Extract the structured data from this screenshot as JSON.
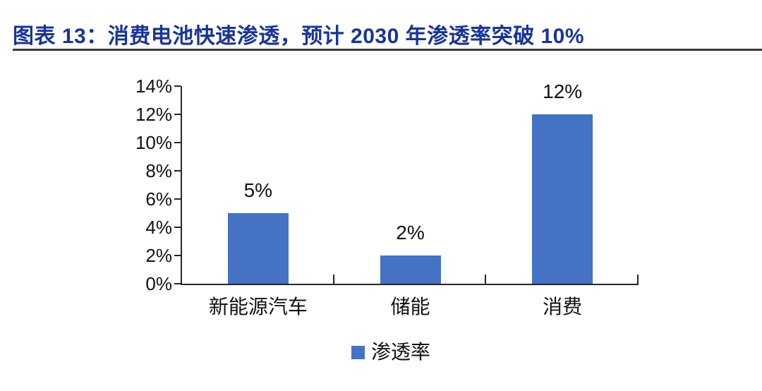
{
  "header": {
    "chart_label": "图表 13：消费电池快速渗透，预计 2030 年渗透率突破 10%"
  },
  "colors": {
    "title_text": "#17349C",
    "separator": "#383838",
    "axis": "#262626",
    "bar": "#4472C4",
    "label_text": "#111111"
  },
  "chart_data": {
    "type": "bar",
    "title": "图表 13：消费电池快速渗透，预计 2030 年渗透率突破 10%",
    "categories": [
      "新能源汽车",
      "储能",
      "消费"
    ],
    "values": [
      5,
      2,
      12
    ],
    "data_labels": [
      "5%",
      "2%",
      "12%"
    ],
    "unit": "%",
    "ylim": [
      0,
      14
    ],
    "y_tick_step": 2,
    "y_tick_labels": [
      "0%",
      "2%",
      "4%",
      "6%",
      "8%",
      "10%",
      "12%",
      "14%"
    ],
    "grid": false,
    "xlabel": "",
    "ylabel": "",
    "legend": {
      "position": "bottom-center",
      "items": [
        {
          "label": "渗透率",
          "color": "#4472C4"
        }
      ]
    }
  }
}
